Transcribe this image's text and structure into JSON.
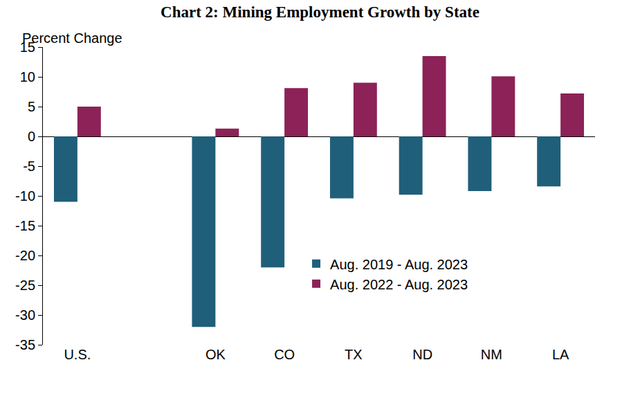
{
  "chart_data": {
    "type": "bar",
    "title": "Chart 2: Mining Employment Growth by State",
    "ylabel": "Percent Change",
    "categories": [
      "U.S.",
      null,
      "OK",
      "CO",
      "TX",
      "ND",
      "NM",
      "LA"
    ],
    "series": [
      {
        "name": "Aug. 2019 - Aug. 2023",
        "color": "#1f5f7a",
        "values": [
          -11,
          null,
          -32,
          -22,
          -10.4,
          -9.8,
          -9.2,
          -8.4
        ]
      },
      {
        "name": "Aug. 2022 - Aug. 2023",
        "color": "#8c2257",
        "values": [
          5,
          null,
          1.3,
          8.1,
          9,
          13.5,
          10.1,
          7.2
        ]
      }
    ],
    "ylim": [
      -35,
      15
    ],
    "yticks": [
      -35,
      -30,
      -25,
      -20,
      -15,
      -10,
      -5,
      0,
      5,
      10,
      15
    ],
    "grid": false,
    "legend": "lower right"
  }
}
